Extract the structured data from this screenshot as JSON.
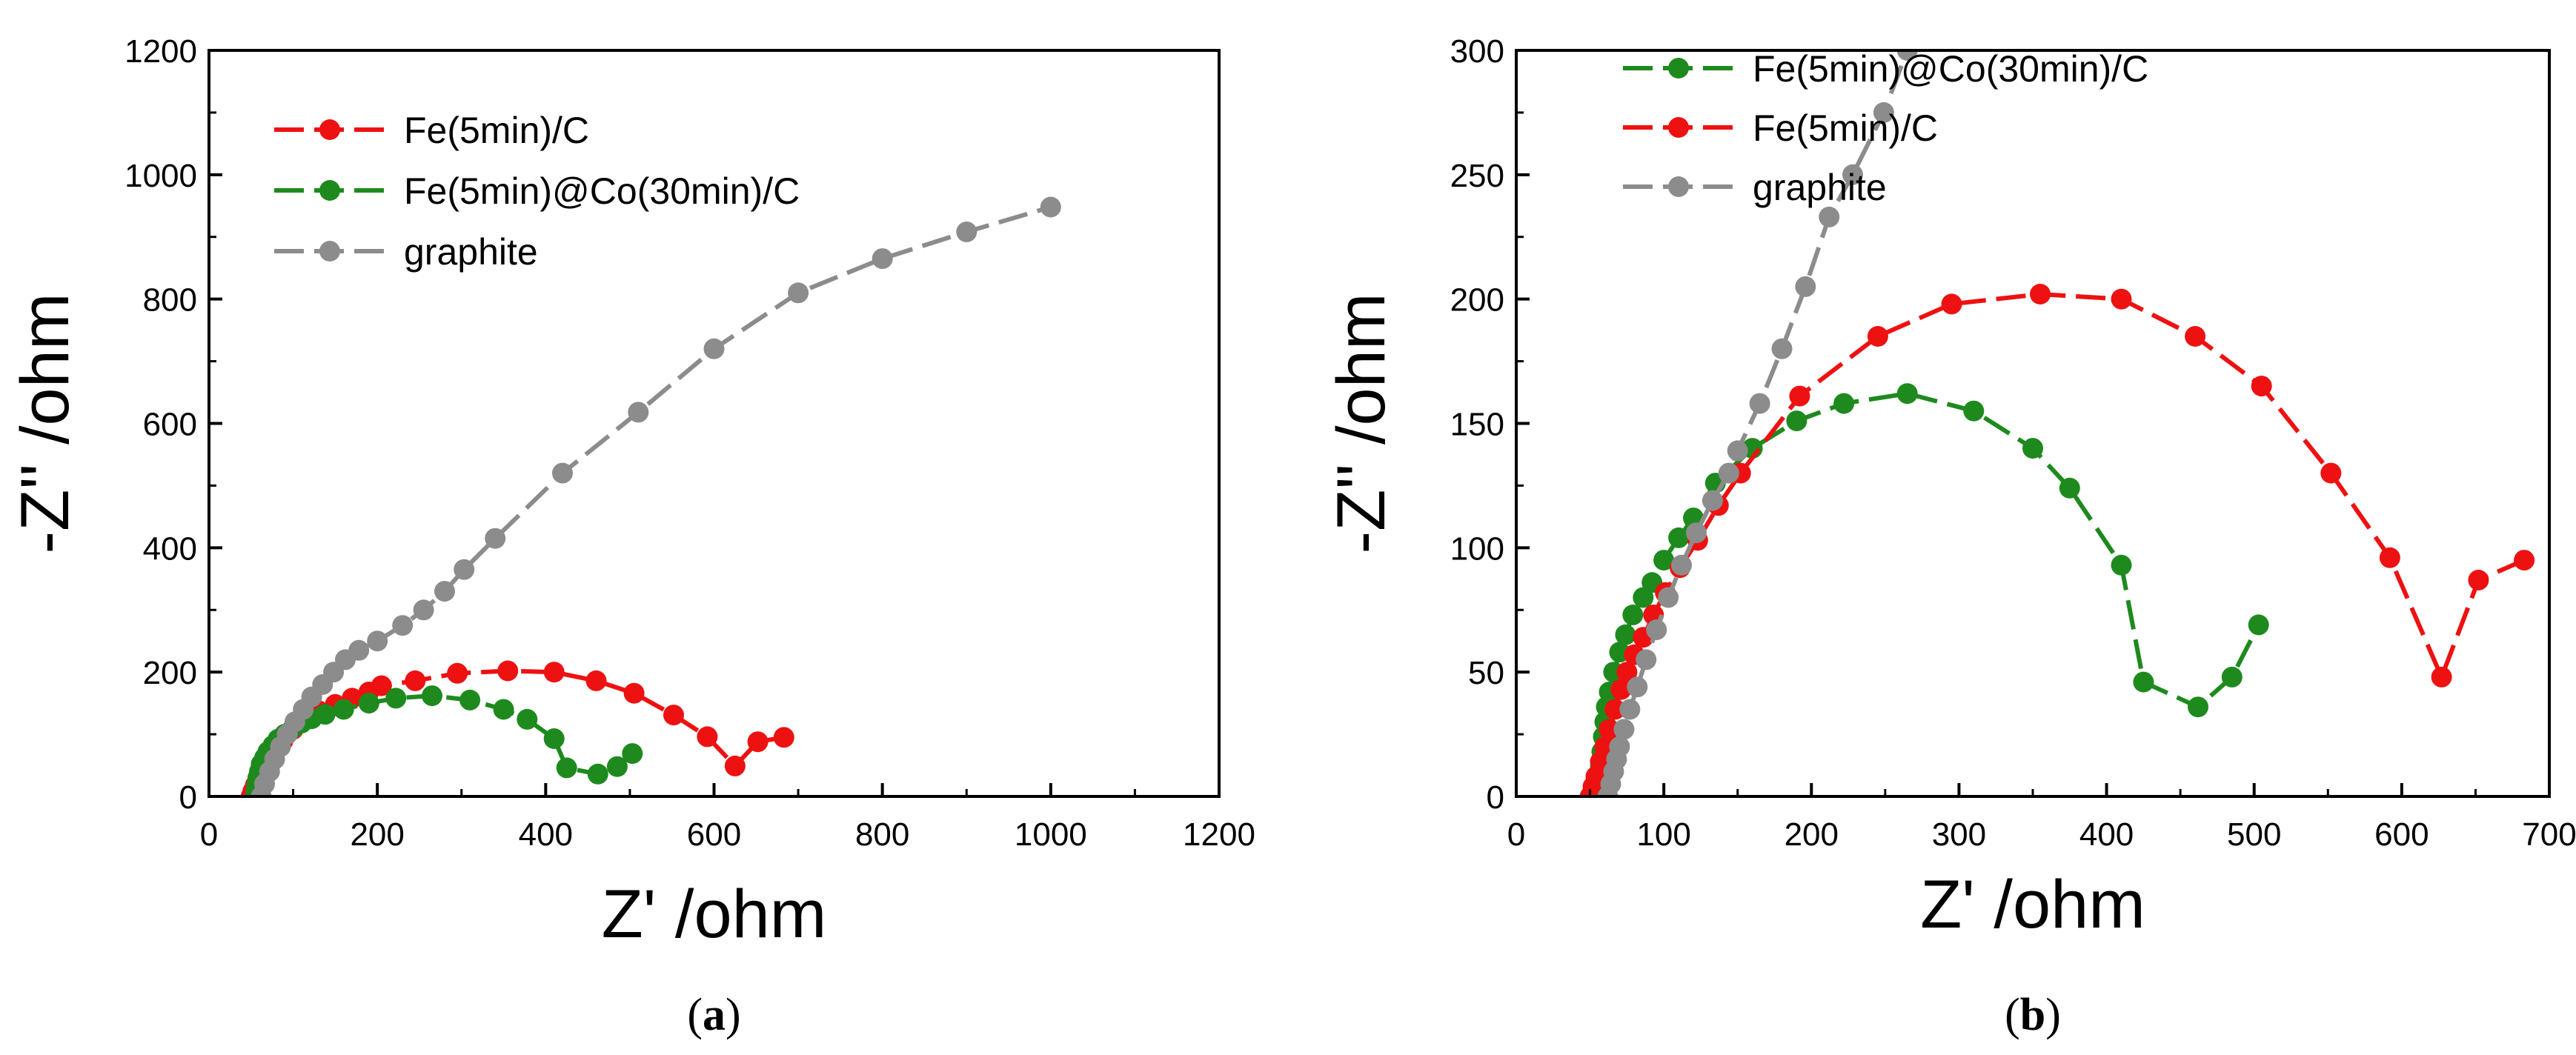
{
  "chart_data": [
    {
      "type": "scatter",
      "panel_label": "(a)",
      "panel_letter": "a",
      "xlabel": "Z' /ohm",
      "ylabel": "-Z'' /ohm",
      "xlim": [
        0,
        1200
      ],
      "ylim": [
        0,
        1200
      ],
      "xticks": [
        "0",
        "200",
        "400",
        "600",
        "800",
        "1000",
        "1200"
      ],
      "yticks": [
        "0",
        "200",
        "400",
        "600",
        "800",
        "1000",
        "1200"
      ],
      "legend_position": "top-left",
      "series": [
        {
          "name": "Fe(5min)/C",
          "color": "#ee1111",
          "points": [
            [
              50,
              0
            ],
            [
              52,
              8
            ],
            [
              55,
              18
            ],
            [
              59,
              30
            ],
            [
              64,
              45
            ],
            [
              70,
              60
            ],
            [
              78,
              75
            ],
            [
              88,
              90
            ],
            [
              100,
              108
            ],
            [
              115,
              125
            ],
            [
              130,
              138
            ],
            [
              150,
              148
            ],
            [
              170,
              158
            ],
            [
              190,
              168
            ],
            [
              205,
              178
            ],
            [
              245,
              186
            ],
            [
              295,
              198
            ],
            [
              355,
              202
            ],
            [
              410,
              200
            ],
            [
              460,
              186
            ],
            [
              505,
              166
            ],
            [
              552,
              131
            ],
            [
              592,
              96
            ],
            [
              625,
              49
            ],
            [
              652,
              88
            ],
            [
              683,
              95
            ]
          ]
        },
        {
          "name": "Fe(5min)@Co(30min)/C",
          "color": "#1e8a1e",
          "points": [
            [
              55,
              0
            ],
            [
              56,
              10
            ],
            [
              57,
              20
            ],
            [
              58,
              30
            ],
            [
              60,
              40
            ],
            [
              62,
              52
            ],
            [
              66,
              62
            ],
            [
              70,
              72
            ],
            [
              76,
              82
            ],
            [
              82,
              92
            ],
            [
              90,
              100
            ],
            [
              100,
              110
            ],
            [
              110,
              118
            ],
            [
              122,
              125
            ],
            [
              138,
              132
            ],
            [
              160,
              140
            ],
            [
              190,
              150
            ],
            [
              222,
              158
            ],
            [
              265,
              162
            ],
            [
              310,
              155
            ],
            [
              350,
              140
            ],
            [
              378,
              124
            ],
            [
              410,
              93
            ],
            [
              425,
              46
            ],
            [
              462,
              36
            ],
            [
              485,
              48
            ],
            [
              503,
              69
            ]
          ]
        },
        {
          "name": "graphite",
          "color": "#8c8c8c",
          "points": [
            [
              62,
              0
            ],
            [
              66,
              20
            ],
            [
              72,
              40
            ],
            [
              78,
              60
            ],
            [
              85,
              80
            ],
            [
              93,
              100
            ],
            [
              102,
              120
            ],
            [
              112,
              140
            ],
            [
              122,
              160
            ],
            [
              135,
              180
            ],
            [
              148,
              200
            ],
            [
              162,
              220
            ],
            [
              178,
              235
            ],
            [
              200,
              250
            ],
            [
              230,
              275
            ],
            [
              255,
              300
            ],
            [
              280,
              330
            ],
            [
              303,
              365
            ],
            [
              340,
              415
            ],
            [
              420,
              520
            ],
            [
              510,
              618
            ],
            [
              600,
              720
            ],
            [
              700,
              810
            ],
            [
              800,
              865
            ],
            [
              900,
              908
            ],
            [
              1000,
              948
            ]
          ]
        }
      ]
    },
    {
      "type": "scatter",
      "panel_label": "(b)",
      "panel_letter": "b",
      "xlabel": "Z' /ohm",
      "ylabel": "-Z'' /ohm",
      "xlim": [
        0,
        700
      ],
      "ylim": [
        0,
        300
      ],
      "xticks": [
        "0",
        "100",
        "200",
        "300",
        "400",
        "500",
        "600",
        "700"
      ],
      "yticks": [
        "0",
        "50",
        "100",
        "150",
        "200",
        "250",
        "300"
      ],
      "legend_position": "top-center",
      "series": [
        {
          "name": "Fe(5min)@Co(30min)/C",
          "color": "#1e8a1e",
          "points": [
            [
              55,
              0
            ],
            [
              56,
              6
            ],
            [
              57,
              12
            ],
            [
              58,
              18
            ],
            [
              59,
              24
            ],
            [
              60,
              30
            ],
            [
              61,
              36
            ],
            [
              63,
              42
            ],
            [
              66,
              50
            ],
            [
              70,
              58
            ],
            [
              74,
              65
            ],
            [
              79,
              73
            ],
            [
              86,
              80
            ],
            [
              92,
              86
            ],
            [
              100,
              95
            ],
            [
              110,
              104
            ],
            [
              120,
              112
            ],
            [
              135,
              126
            ],
            [
              160,
              140
            ],
            [
              190,
              151
            ],
            [
              222,
              158
            ],
            [
              265,
              162
            ],
            [
              310,
              155
            ],
            [
              350,
              140
            ],
            [
              375,
              124
            ],
            [
              410,
              93
            ],
            [
              425,
              46
            ],
            [
              462,
              36
            ],
            [
              485,
              48
            ],
            [
              503,
              69
            ]
          ]
        },
        {
          "name": "Fe(5min)/C",
          "color": "#ee1111",
          "points": [
            [
              50,
              0
            ],
            [
              52,
              4
            ],
            [
              54,
              8
            ],
            [
              57,
              14
            ],
            [
              60,
              20
            ],
            [
              63,
              27
            ],
            [
              67,
              35
            ],
            [
              71,
              43
            ],
            [
              75,
              50
            ],
            [
              80,
              57
            ],
            [
              86,
              64
            ],
            [
              93,
              73
            ],
            [
              101,
              82
            ],
            [
              111,
              92
            ],
            [
              123,
              103
            ],
            [
              137,
              117
            ],
            [
              152,
              130
            ],
            [
              192,
              161
            ],
            [
              245,
              185
            ],
            [
              295,
              198
            ],
            [
              355,
              202
            ],
            [
              410,
              200
            ],
            [
              460,
              185
            ],
            [
              505,
              165
            ],
            [
              552,
              130
            ],
            [
              592,
              96
            ],
            [
              627,
              48
            ],
            [
              652,
              87
            ],
            [
              683,
              95
            ]
          ]
        },
        {
          "name": "graphite",
          "color": "#8c8c8c",
          "points": [
            [
              62,
              0
            ],
            [
              64,
              5
            ],
            [
              66,
              10
            ],
            [
              68,
              15
            ],
            [
              70,
              20
            ],
            [
              73,
              27
            ],
            [
              77,
              35
            ],
            [
              82,
              44
            ],
            [
              88,
              55
            ],
            [
              95,
              67
            ],
            [
              103,
              80
            ],
            [
              112,
              93
            ],
            [
              122,
              106
            ],
            [
              133,
              119
            ],
            [
              144,
              130
            ],
            [
              150,
              139
            ],
            [
              165,
              158
            ],
            [
              180,
              180
            ],
            [
              196,
              205
            ],
            [
              212,
              233
            ],
            [
              228,
              250
            ],
            [
              249,
              275
            ],
            [
              265,
              300
            ]
          ]
        }
      ]
    }
  ]
}
